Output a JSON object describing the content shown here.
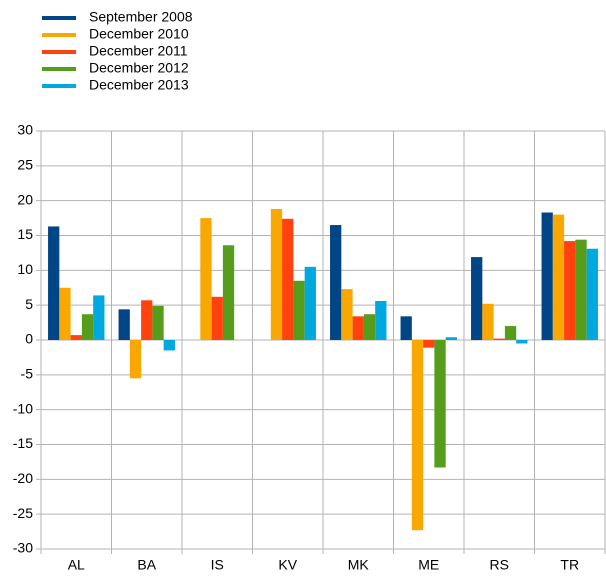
{
  "chart_data": {
    "type": "bar",
    "categories": [
      "AL",
      "BA",
      "IS",
      "KV",
      "MK",
      "ME",
      "RS",
      "TR"
    ],
    "series": [
      {
        "name": "September 2008",
        "color": "#004586",
        "values": [
          16.3,
          4.4,
          null,
          null,
          16.5,
          3.4,
          11.9,
          18.3
        ]
      },
      {
        "name": "December 2010",
        "color": "#f8a800",
        "values": [
          7.5,
          -5.5,
          17.5,
          18.8,
          7.3,
          -27.3,
          5.2,
          18.0
        ]
      },
      {
        "name": "December 2011",
        "color": "#ff420e",
        "values": [
          0.7,
          5.7,
          6.2,
          17.4,
          3.4,
          -1.1,
          0.2,
          14.2
        ]
      },
      {
        "name": "December 2012",
        "color": "#579d1c",
        "values": [
          3.7,
          4.9,
          13.6,
          8.5,
          3.7,
          -18.3,
          2.0,
          14.4
        ]
      },
      {
        "name": "December 2013",
        "color": "#00a8e0",
        "values": [
          6.4,
          -1.5,
          null,
          10.5,
          5.6,
          0.4,
          -0.5,
          13.1
        ]
      }
    ],
    "ylim": [
      -30,
      30
    ],
    "yticks": [
      -30,
      -25,
      -20,
      -15,
      -10,
      -5,
      0,
      5,
      10,
      15,
      20,
      25,
      30
    ],
    "grid": true,
    "legend": "top-left"
  }
}
